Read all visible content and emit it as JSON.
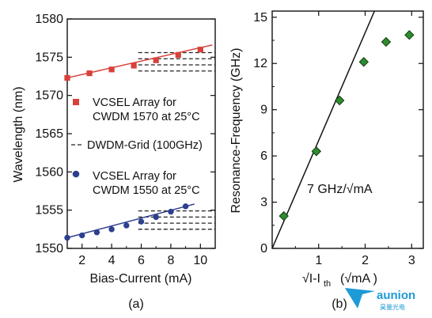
{
  "chart_data": [
    {
      "type": "scatter",
      "panel_label": "(a)",
      "xlabel": "Bias-Current (mA)",
      "ylabel": "Wavelength (nm)",
      "xlim": [
        1,
        11
      ],
      "ylim": [
        1550,
        1580
      ],
      "x_ticks": [
        "2",
        "4",
        "6",
        "8",
        "10"
      ],
      "y_ticks": [
        "1550",
        "1555",
        "1560",
        "1565",
        "1570",
        "1575",
        "1580"
      ],
      "series": [
        {
          "name": "VCSEL Array for CWDM 1570 at 25°C",
          "name_lines": [
            "VCSEL Array for",
            "CWDM 1570 at 25°C"
          ],
          "color": "#d9403a",
          "marker": "square",
          "x": [
            1,
            2.5,
            4,
            5.5,
            7,
            8.5,
            10
          ],
          "y": [
            1572.3,
            1572.9,
            1573.4,
            1573.9,
            1574.6,
            1575.3,
            1576.0
          ],
          "fit": [
            [
              1,
              1572.3
            ],
            [
              10.8,
              1576.6
            ]
          ]
        },
        {
          "name": "VCSEL Array for CWDM 1550 at 25°C",
          "name_lines": [
            "VCSEL Array for",
            "CWDM 1550 at 25°C"
          ],
          "color": "#2c3f8f",
          "marker": "circle",
          "x": [
            1,
            2,
            3,
            4,
            5,
            6,
            7,
            8,
            9
          ],
          "y": [
            1551.4,
            1551.7,
            1552.1,
            1552.5,
            1553.0,
            1553.5,
            1554.1,
            1554.8,
            1555.5
          ],
          "fit": [
            [
              1,
              1551.4
            ],
            [
              9.6,
              1555.8
            ]
          ]
        }
      ],
      "grid_lines": {
        "name": "DWDM-Grid (100GHz)",
        "style": "dashed",
        "color": "#222222",
        "y_values": [
          1573.2,
          1574.0,
          1574.8,
          1575.6,
          1552.5,
          1553.3,
          1554.1,
          1554.9
        ],
        "x_range": [
          5.8,
          11
        ]
      },
      "legend_placement": "center"
    },
    {
      "type": "scatter",
      "panel_label": "(b)",
      "xlabel_main": "√I-I",
      "xlabel_sub": "th",
      "xlabel_unit": "(√mA )",
      "ylabel": "Resonance-Frequency (GHz)",
      "xlim": [
        0,
        3.25
      ],
      "ylim": [
        0,
        15.4
      ],
      "x_ticks": [
        "1",
        "2",
        "3"
      ],
      "y_ticks": [
        "0",
        "3",
        "6",
        "9",
        "12",
        "15"
      ],
      "series": [
        {
          "name": "Resonance-Frequency",
          "color": "#2e8b2e",
          "edge": "#123d12",
          "marker": "diamond",
          "x": [
            0.25,
            0.95,
            1.45,
            1.97,
            2.45,
            2.95
          ],
          "y": [
            2.1,
            6.3,
            9.6,
            12.1,
            13.4,
            13.85
          ]
        }
      ],
      "fit_line": {
        "slope": 7,
        "from_x": 0,
        "to_x": 2.2
      },
      "annotation": "7 GHz/√mA"
    }
  ],
  "watermark": {
    "name": "aunion",
    "subtitle": "昊量光电"
  }
}
